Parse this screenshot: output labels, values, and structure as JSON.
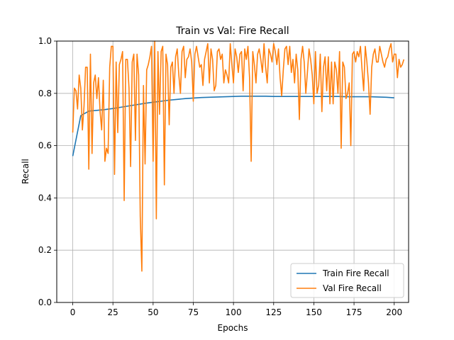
{
  "chart_data": {
    "type": "line",
    "title": "Train vs Val: Fire Recall",
    "xlabel": "Epochs",
    "ylabel": "Recall",
    "xlim": [
      -9.95,
      208.95
    ],
    "ylim": [
      0.0,
      1.0
    ],
    "grid": true,
    "legend_position": "lower-right",
    "x_ticks": [
      0,
      25,
      50,
      75,
      100,
      125,
      150,
      175,
      200
    ],
    "y_ticks": [
      0.0,
      0.2,
      0.4,
      0.6,
      0.8,
      1.0
    ],
    "x_tick_labels": [
      "0",
      "25",
      "50",
      "75",
      "100",
      "125",
      "150",
      "175",
      "200"
    ],
    "y_tick_labels": [
      "0.0",
      "0.2",
      "0.4",
      "0.6",
      "0.8",
      "1.0"
    ],
    "series": [
      {
        "name": "Train Fire Recall",
        "color": "#1f77b4",
        "x_start": 0,
        "x_step": 5,
        "values": [
          0.56,
          0.715,
          0.732,
          0.735,
          0.738,
          0.742,
          0.747,
          0.752,
          0.757,
          0.762,
          0.766,
          0.77,
          0.774,
          0.777,
          0.78,
          0.782,
          0.784,
          0.785,
          0.786,
          0.787,
          0.788,
          0.789,
          0.789,
          0.789,
          0.789,
          0.788,
          0.788,
          0.788,
          0.788,
          0.788,
          0.788,
          0.788,
          0.788,
          0.788,
          0.787,
          0.787,
          0.787,
          0.787,
          0.786,
          0.785,
          0.783
        ]
      },
      {
        "name": "Val Fire Recall",
        "color": "#ff7f0e",
        "x_start": 0,
        "x_step": 1,
        "values": [
          0.65,
          0.82,
          0.81,
          0.74,
          0.87,
          0.82,
          0.66,
          0.75,
          0.9,
          0.9,
          0.51,
          0.95,
          0.57,
          0.84,
          0.87,
          0.78,
          0.86,
          0.73,
          0.66,
          0.85,
          0.54,
          0.59,
          0.57,
          0.9,
          0.98,
          0.98,
          0.49,
          0.92,
          0.65,
          0.91,
          0.93,
          0.96,
          0.39,
          0.93,
          0.93,
          0.82,
          0.52,
          0.92,
          0.95,
          0.62,
          0.95,
          0.87,
          0.33,
          0.12,
          0.83,
          0.53,
          0.89,
          0.91,
          0.94,
          0.98,
          0.54,
          1.0,
          0.32,
          0.96,
          0.72,
          0.96,
          0.98,
          0.45,
          0.95,
          0.91,
          0.68,
          0.9,
          0.92,
          0.8,
          0.94,
          0.97,
          0.87,
          0.8,
          0.96,
          0.98,
          0.86,
          0.93,
          0.94,
          0.97,
          0.92,
          0.77,
          0.95,
          0.98,
          0.94,
          0.9,
          0.91,
          0.83,
          0.93,
          0.96,
          0.99,
          0.84,
          0.97,
          0.93,
          0.81,
          0.83,
          0.96,
          0.97,
          0.93,
          0.95,
          0.84,
          0.89,
          0.87,
          0.84,
          0.99,
          0.91,
          0.84,
          0.97,
          0.94,
          0.88,
          0.95,
          0.96,
          0.81,
          0.97,
          0.93,
          0.98,
          0.86,
          0.54,
          0.96,
          0.91,
          0.84,
          0.95,
          0.97,
          0.93,
          0.88,
          0.99,
          0.9,
          0.84,
          0.97,
          0.95,
          0.92,
          0.99,
          0.96,
          0.91,
          0.97,
          0.86,
          0.79,
          0.89,
          0.97,
          0.98,
          0.91,
          0.98,
          0.88,
          0.93,
          0.84,
          0.95,
          0.89,
          0.7,
          0.93,
          0.98,
          0.92,
          0.8,
          0.88,
          0.97,
          0.93,
          0.87,
          0.76,
          0.96,
          0.8,
          0.83,
          0.95,
          0.73,
          0.9,
          0.94,
          0.81,
          0.94,
          0.76,
          0.92,
          0.76,
          0.92,
          0.89,
          0.8,
          0.96,
          0.59,
          0.92,
          0.9,
          0.78,
          0.8,
          0.84,
          0.6,
          0.95,
          0.96,
          0.92,
          0.96,
          0.94,
          0.98,
          0.89,
          0.81,
          0.98,
          0.92,
          0.84,
          0.72,
          0.9,
          0.95,
          0.97,
          0.92,
          0.92,
          0.98,
          0.95,
          0.92,
          0.9,
          0.93,
          0.94,
          0.97,
          0.99,
          0.92,
          0.95,
          0.95,
          0.86,
          0.93,
          0.9,
          0.91,
          0.93
        ]
      }
    ]
  }
}
